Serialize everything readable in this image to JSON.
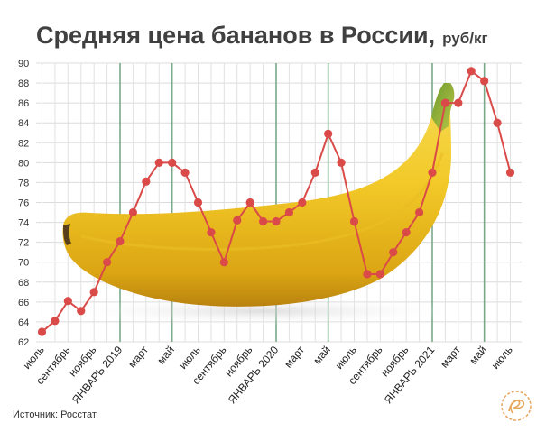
{
  "chart_data": {
    "type": "line",
    "title": "Средняя цена бананов в России,",
    "unit": "руб/кг",
    "source": "Источник: Росстат",
    "ylim": [
      62,
      90
    ],
    "yticks": [
      62,
      64,
      66,
      68,
      70,
      72,
      74,
      76,
      78,
      80,
      82,
      84,
      86,
      88,
      90
    ],
    "grid": true,
    "line_color": "#d94a48",
    "year_markers": [
      "ЯНВАРЬ 2019",
      "ЯНВАРЬ 2020",
      "ЯНВАРЬ 2021",
      "май"
    ],
    "categories": [
      "июль",
      "",
      "сентябрь",
      "",
      "ноябрь",
      "",
      "ЯНВАРЬ 2019",
      "",
      "март",
      "",
      "май",
      "",
      "июль",
      "",
      "сентябрь",
      "",
      "ноябрь",
      "",
      "ЯНВАРЬ 2020",
      "",
      "март",
      "",
      "май",
      "",
      "июль",
      "",
      "сентябрь",
      "",
      "ноябрь",
      "",
      "ЯНВАРЬ 2021",
      "",
      "март",
      "",
      "май",
      "",
      "июль"
    ],
    "values": [
      63.0,
      64.1,
      66.1,
      65.1,
      67.0,
      70.0,
      72.1,
      75.0,
      78.1,
      80.0,
      80.0,
      79.0,
      76.0,
      73.0,
      70.0,
      74.2,
      76.0,
      74.1,
      74.1,
      75.0,
      76.0,
      79.0,
      82.9,
      80.0,
      74.1,
      68.8,
      68.8,
      71.0,
      73.0,
      75.0,
      79.0,
      86.0,
      86.0,
      89.2,
      88.2,
      84.0,
      79.0
    ]
  }
}
